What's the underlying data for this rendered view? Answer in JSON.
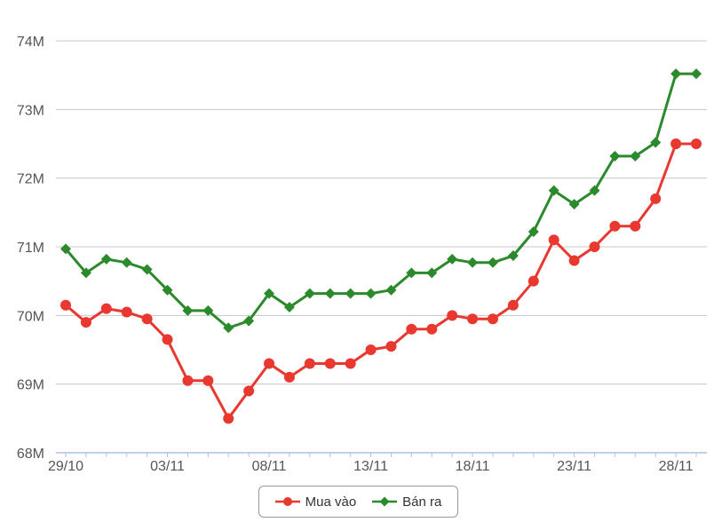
{
  "chart_data": {
    "type": "line",
    "title": "",
    "xlabel": "",
    "ylabel": "",
    "ylim": [
      68,
      74
    ],
    "y_ticks": [
      "68M",
      "69M",
      "70M",
      "71M",
      "72M",
      "73M",
      "74M"
    ],
    "x_tick_labels": [
      "29/10",
      "03/11",
      "08/11",
      "13/11",
      "18/11",
      "23/11",
      "28/11"
    ],
    "grid": true,
    "legend_position": "bottom-center",
    "categories": [
      "29/10",
      "30/10",
      "31/10",
      "01/11",
      "02/11",
      "03/11",
      "04/11",
      "05/11",
      "06/11",
      "07/11",
      "08/11",
      "09/11",
      "10/11",
      "11/11",
      "12/11",
      "13/11",
      "14/11",
      "15/11",
      "16/11",
      "17/11",
      "18/11",
      "19/11",
      "20/11",
      "21/11",
      "22/11",
      "23/11",
      "24/11",
      "25/11",
      "26/11",
      "27/11",
      "28/11",
      "29/11"
    ],
    "series": [
      {
        "name": "Mua vào",
        "color": "#e8382f",
        "marker": "circle",
        "values": [
          70.15,
          69.9,
          70.1,
          70.05,
          69.95,
          69.65,
          69.05,
          69.05,
          68.5,
          68.9,
          69.3,
          69.1,
          69.3,
          69.3,
          69.3,
          69.5,
          69.55,
          69.8,
          69.8,
          70.0,
          69.95,
          69.95,
          70.15,
          70.5,
          71.1,
          70.8,
          71.0,
          71.3,
          71.3,
          71.7,
          72.5,
          72.5
        ]
      },
      {
        "name": "Bán ra",
        "color": "#2b8a2b",
        "marker": "diamond",
        "values": [
          70.97,
          70.62,
          70.82,
          70.77,
          70.67,
          70.37,
          70.07,
          70.07,
          69.82,
          69.92,
          70.32,
          70.12,
          70.32,
          70.32,
          70.32,
          70.32,
          70.37,
          70.62,
          70.62,
          70.82,
          70.77,
          70.77,
          70.87,
          71.22,
          71.82,
          71.62,
          71.82,
          72.32,
          72.32,
          72.52,
          73.52,
          73.52
        ]
      }
    ]
  }
}
